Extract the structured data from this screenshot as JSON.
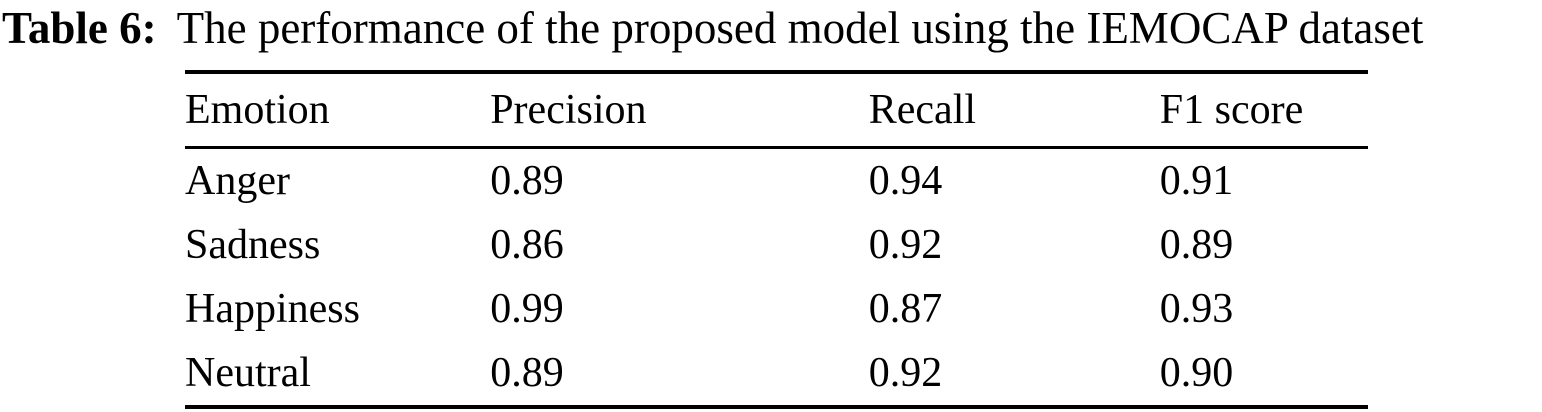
{
  "caption": {
    "label": "Table 6:",
    "text": "The performance of the proposed model using the IEMOCAP dataset"
  },
  "table": {
    "columns": [
      "Emotion",
      "Precision",
      "Recall",
      "F1 score"
    ],
    "rows": [
      [
        "Anger",
        "0.89",
        "0.94",
        "0.91"
      ],
      [
        "Sadness",
        "0.86",
        "0.92",
        "0.89"
      ],
      [
        "Happiness",
        "0.99",
        "0.87",
        "0.93"
      ],
      [
        "Neutral",
        "0.89",
        "0.92",
        "0.90"
      ]
    ]
  },
  "colors": {
    "text": "#000000",
    "background": "#ffffff",
    "rule": "#000000"
  }
}
